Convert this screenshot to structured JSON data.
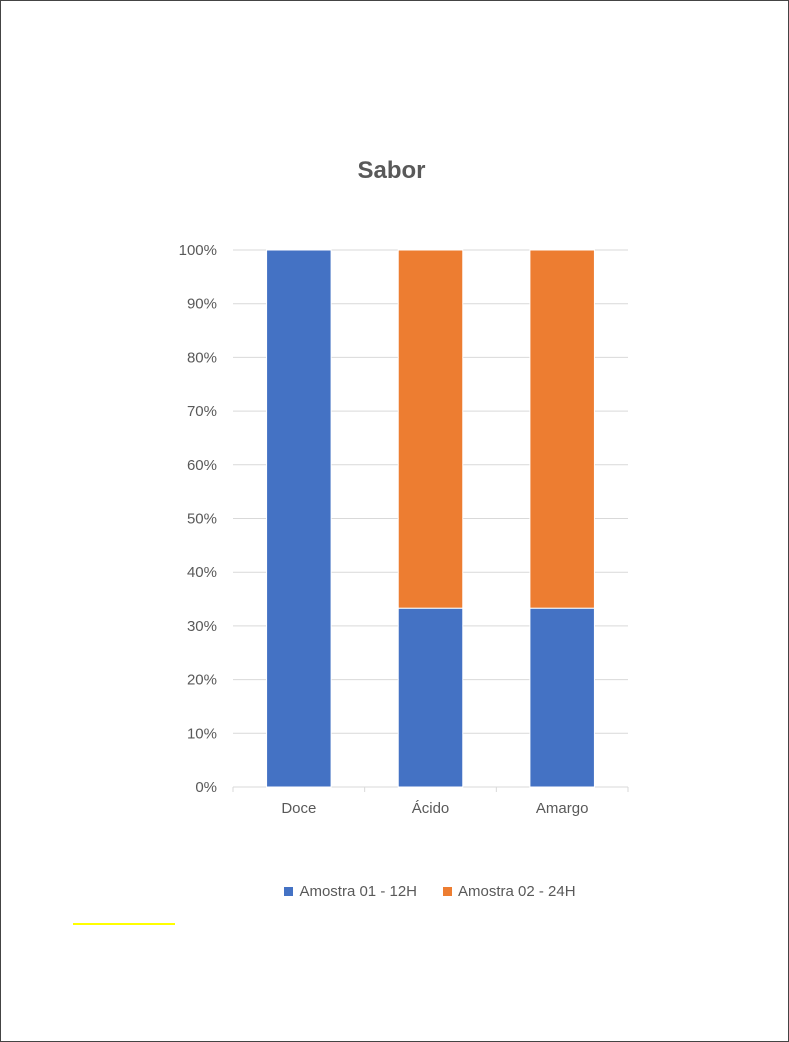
{
  "chart_data": {
    "type": "bar",
    "stacked": true,
    "title": "Sabor",
    "categories": [
      "Doce",
      "Ácido",
      "Amargo"
    ],
    "series": [
      {
        "name": "Amostra 01 - 12H",
        "values": [
          100,
          33.3,
          33.3
        ],
        "color": "#4472C4"
      },
      {
        "name": "Amostra 02 - 24H",
        "values": [
          0,
          66.7,
          66.7
        ],
        "color": "#ED7D31"
      }
    ],
    "y_ticks": [
      "0%",
      "10%",
      "20%",
      "30%",
      "40%",
      "50%",
      "60%",
      "70%",
      "80%",
      "90%",
      "100%"
    ],
    "ylim": [
      0,
      100
    ],
    "grid": true,
    "legend_position": "bottom"
  }
}
